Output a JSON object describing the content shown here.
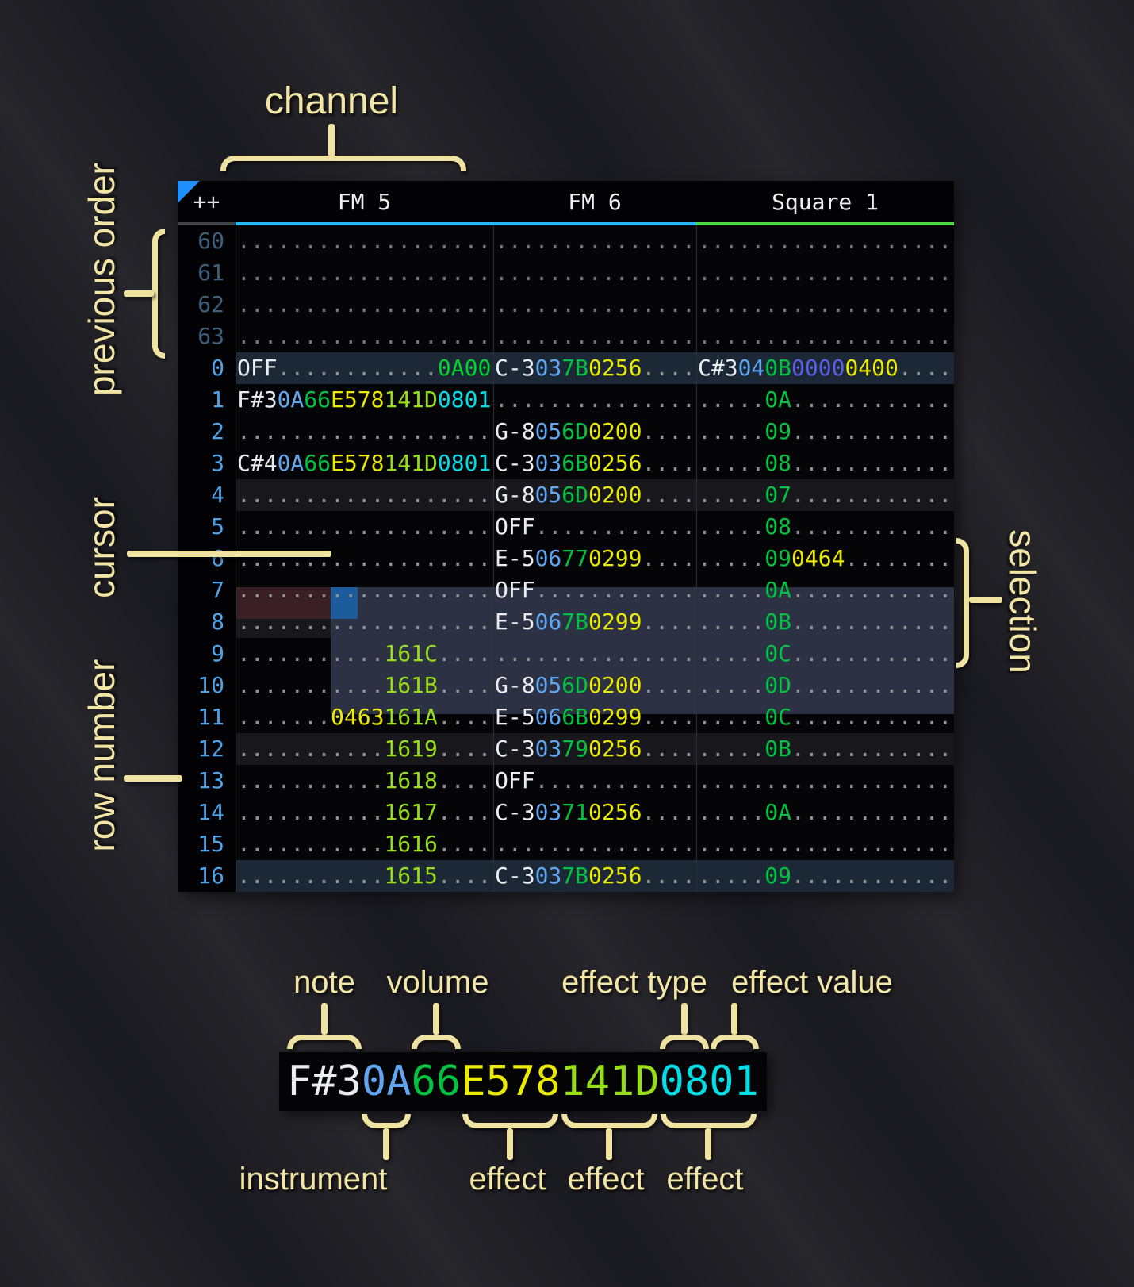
{
  "palette": {
    "note": "#e9edf2",
    "ins": "#61a6f0",
    "vol": "#00c341",
    "fxy": "#ebeb00",
    "fxl": "#97de17",
    "fxc": "#00dfe8",
    "fxp": "#5e5ee6",
    "fxg": "#00d22e",
    "dot": "#8e9297",
    "dim": "#70757a",
    "rownum": "#4ea3e8",
    "rowdim": "#3c5f7c",
    "underline_fm": "#29b8f2",
    "underline_square": "#4ed947",
    "cursor": "#1c5c9c",
    "selection": "#2d3144",
    "cursor_row": "#3a2024",
    "corner_triangle": "#1e8fff",
    "annotation": "#f2e5a6"
  },
  "annotations": {
    "channel": "channel",
    "previous_order": "previous order",
    "cursor": "cursor",
    "row_number": "row number",
    "selection": "selection",
    "note": "note",
    "volume": "volume",
    "effect_type": "effect type",
    "effect_value": "effect value",
    "instrument": "instrument",
    "effect1": "effect",
    "effect2": "effect",
    "effect3": "effect"
  },
  "tracker": {
    "corner_label": "++",
    "channels": [
      {
        "name": "FM 5",
        "underline": "#29b8f2"
      },
      {
        "name": "FM 6",
        "underline": "#29b8f2"
      },
      {
        "name": "Square 1",
        "underline": "#4ed947"
      }
    ],
    "rows": [
      {
        "num": "60",
        "dim": true,
        "bg": "none",
        "cells": [
          [
            [
              "...................",
              "dim"
            ]
          ],
          [
            [
              "...............",
              "dim"
            ]
          ],
          [
            [
              "...................",
              "dim"
            ]
          ]
        ]
      },
      {
        "num": "61",
        "dim": true,
        "bg": "none",
        "cells": [
          [
            [
              "...................",
              "dim"
            ]
          ],
          [
            [
              "...............",
              "dim"
            ]
          ],
          [
            [
              "...................",
              "dim"
            ]
          ]
        ]
      },
      {
        "num": "62",
        "dim": true,
        "bg": "none",
        "cells": [
          [
            [
              "...................",
              "dim"
            ]
          ],
          [
            [
              "...............",
              "dim"
            ]
          ],
          [
            [
              "...................",
              "dim"
            ]
          ]
        ]
      },
      {
        "num": "63",
        "dim": true,
        "bg": "none",
        "cells": [
          [
            [
              "...................",
              "dim"
            ]
          ],
          [
            [
              "...............",
              "dim"
            ]
          ],
          [
            [
              "...................",
              "dim"
            ]
          ]
        ]
      },
      {
        "num": "0",
        "dim": false,
        "bg": "major",
        "cells": [
          [
            [
              "OFF",
              "note"
            ],
            [
              "............",
              "dot"
            ],
            [
              "0A00",
              "fxg"
            ]
          ],
          [
            [
              "C-3",
              "note"
            ],
            [
              "03",
              "ins"
            ],
            [
              "7B",
              "vol"
            ],
            [
              "0256",
              "fxy"
            ],
            [
              "....",
              "dot"
            ]
          ],
          [
            [
              "C#3",
              "note"
            ],
            [
              "04",
              "ins"
            ],
            [
              "0B",
              "vol"
            ],
            [
              "0000",
              "fxp"
            ],
            [
              "0400",
              "fxy"
            ],
            [
              "....",
              "dot"
            ]
          ]
        ]
      },
      {
        "num": "1",
        "dim": false,
        "bg": "none",
        "cells": [
          [
            [
              "F#3",
              "note"
            ],
            [
              "0A",
              "ins"
            ],
            [
              "66",
              "vol"
            ],
            [
              "E578",
              "fxy"
            ],
            [
              "141D",
              "fxl"
            ],
            [
              "0801",
              "fxc"
            ]
          ],
          [
            [
              "...............",
              "dot"
            ]
          ],
          [
            [
              ".....",
              "dot"
            ],
            [
              "0A",
              "vol"
            ],
            [
              "............",
              "dot"
            ]
          ]
        ]
      },
      {
        "num": "2",
        "dim": false,
        "bg": "none",
        "cells": [
          [
            [
              "...................",
              "dot"
            ]
          ],
          [
            [
              "G-8",
              "note"
            ],
            [
              "05",
              "ins"
            ],
            [
              "6D",
              "vol"
            ],
            [
              "0200",
              "fxy"
            ],
            [
              "....",
              "dot"
            ]
          ],
          [
            [
              ".....",
              "dot"
            ],
            [
              "09",
              "vol"
            ],
            [
              "............",
              "dot"
            ]
          ]
        ]
      },
      {
        "num": "3",
        "dim": false,
        "bg": "none",
        "cells": [
          [
            [
              "C#4",
              "note"
            ],
            [
              "0A",
              "ins"
            ],
            [
              "66",
              "vol"
            ],
            [
              "E578",
              "fxy"
            ],
            [
              "141D",
              "fxl"
            ],
            [
              "0801",
              "fxc"
            ]
          ],
          [
            [
              "C-3",
              "note"
            ],
            [
              "03",
              "ins"
            ],
            [
              "6B",
              "vol"
            ],
            [
              "0256",
              "fxy"
            ],
            [
              "....",
              "dot"
            ]
          ],
          [
            [
              ".....",
              "dot"
            ],
            [
              "08",
              "vol"
            ],
            [
              "............",
              "dot"
            ]
          ]
        ]
      },
      {
        "num": "4",
        "dim": false,
        "bg": "minor",
        "cells": [
          [
            [
              "...................",
              "dot"
            ]
          ],
          [
            [
              "G-8",
              "note"
            ],
            [
              "05",
              "ins"
            ],
            [
              "6D",
              "vol"
            ],
            [
              "0200",
              "fxy"
            ],
            [
              "....",
              "dot"
            ]
          ],
          [
            [
              ".....",
              "dot"
            ],
            [
              "07",
              "vol"
            ],
            [
              "............",
              "dot"
            ]
          ]
        ]
      },
      {
        "num": "5",
        "dim": false,
        "bg": "none",
        "cells": [
          [
            [
              "...................",
              "dot"
            ]
          ],
          [
            [
              "OFF",
              "note"
            ],
            [
              "............",
              "dot"
            ]
          ],
          [
            [
              ".....",
              "dot"
            ],
            [
              "08",
              "vol"
            ],
            [
              "............",
              "dot"
            ]
          ]
        ]
      },
      {
        "num": "6",
        "dim": false,
        "bg": "none",
        "cells": [
          [
            [
              "...................",
              "dot"
            ]
          ],
          [
            [
              "E-5",
              "note"
            ],
            [
              "06",
              "ins"
            ],
            [
              "77",
              "vol"
            ],
            [
              "0299",
              "fxy"
            ],
            [
              "....",
              "dot"
            ]
          ],
          [
            [
              ".....",
              "dot"
            ],
            [
              "09",
              "vol"
            ],
            [
              "0464",
              "fxy"
            ],
            [
              "........",
              "dot"
            ]
          ]
        ]
      },
      {
        "num": "7",
        "dim": false,
        "bg": "none",
        "cells": [
          [
            [
              "...................",
              "dot"
            ]
          ],
          [
            [
              "OFF",
              "note"
            ],
            [
              "............",
              "dot"
            ]
          ],
          [
            [
              ".....",
              "dot"
            ],
            [
              "0A",
              "vol"
            ],
            [
              "............",
              "dot"
            ]
          ]
        ]
      },
      {
        "num": "8",
        "dim": false,
        "bg": "minor",
        "cells": [
          [
            [
              "...................",
              "dot"
            ]
          ],
          [
            [
              "E-5",
              "note"
            ],
            [
              "06",
              "ins"
            ],
            [
              "7B",
              "vol"
            ],
            [
              "0299",
              "fxy"
            ],
            [
              "....",
              "dot"
            ]
          ],
          [
            [
              ".....",
              "dot"
            ],
            [
              "0B",
              "vol"
            ],
            [
              "............",
              "dot"
            ]
          ]
        ]
      },
      {
        "num": "9",
        "dim": false,
        "bg": "none",
        "cells": [
          [
            [
              "...........",
              "dot"
            ],
            [
              "161C",
              "fxl"
            ],
            [
              "....",
              "dot"
            ]
          ],
          [
            [
              "...............",
              "dot"
            ]
          ],
          [
            [
              ".....",
              "dot"
            ],
            [
              "0C",
              "vol"
            ],
            [
              "............",
              "dot"
            ]
          ]
        ]
      },
      {
        "num": "10",
        "dim": false,
        "bg": "none",
        "cells": [
          [
            [
              "...........",
              "dot"
            ],
            [
              "161B",
              "fxl"
            ],
            [
              "....",
              "dot"
            ]
          ],
          [
            [
              "G-8",
              "note"
            ],
            [
              "05",
              "ins"
            ],
            [
              "6D",
              "vol"
            ],
            [
              "0200",
              "fxy"
            ],
            [
              "....",
              "dot"
            ]
          ],
          [
            [
              ".....",
              "dot"
            ],
            [
              "0D",
              "vol"
            ],
            [
              "............",
              "dot"
            ]
          ]
        ]
      },
      {
        "num": "11",
        "dim": false,
        "bg": "none",
        "cells": [
          [
            [
              ".......",
              "dot"
            ],
            [
              "0463",
              "fxy"
            ],
            [
              "161A",
              "fxl"
            ],
            [
              "....",
              "dot"
            ]
          ],
          [
            [
              "E-5",
              "note"
            ],
            [
              "06",
              "ins"
            ],
            [
              "6B",
              "vol"
            ],
            [
              "0299",
              "fxy"
            ],
            [
              "....",
              "dot"
            ]
          ],
          [
            [
              ".....",
              "dot"
            ],
            [
              "0C",
              "vol"
            ],
            [
              "............",
              "dot"
            ]
          ]
        ]
      },
      {
        "num": "12",
        "dim": false,
        "bg": "minor",
        "cells": [
          [
            [
              "...........",
              "dot"
            ],
            [
              "1619",
              "fxl"
            ],
            [
              "....",
              "dot"
            ]
          ],
          [
            [
              "C-3",
              "note"
            ],
            [
              "03",
              "ins"
            ],
            [
              "79",
              "vol"
            ],
            [
              "0256",
              "fxy"
            ],
            [
              "....",
              "dot"
            ]
          ],
          [
            [
              ".....",
              "dot"
            ],
            [
              "0B",
              "vol"
            ],
            [
              "............",
              "dot"
            ]
          ]
        ]
      },
      {
        "num": "13",
        "dim": false,
        "bg": "none",
        "cells": [
          [
            [
              "...........",
              "dot"
            ],
            [
              "1618",
              "fxl"
            ],
            [
              "....",
              "dot"
            ]
          ],
          [
            [
              "OFF",
              "note"
            ],
            [
              "............",
              "dot"
            ]
          ],
          [
            [
              "...................",
              "dot"
            ]
          ]
        ]
      },
      {
        "num": "14",
        "dim": false,
        "bg": "none",
        "cells": [
          [
            [
              "...........",
              "dot"
            ],
            [
              "1617",
              "fxl"
            ],
            [
              "....",
              "dot"
            ]
          ],
          [
            [
              "C-3",
              "note"
            ],
            [
              "03",
              "ins"
            ],
            [
              "71",
              "vol"
            ],
            [
              "0256",
              "fxy"
            ],
            [
              "....",
              "dot"
            ]
          ],
          [
            [
              ".....",
              "dot"
            ],
            [
              "0A",
              "vol"
            ],
            [
              "............",
              "dot"
            ]
          ]
        ]
      },
      {
        "num": "15",
        "dim": false,
        "bg": "none",
        "cells": [
          [
            [
              "...........",
              "dot"
            ],
            [
              "1616",
              "fxl"
            ],
            [
              "....",
              "dot"
            ]
          ],
          [
            [
              "...............",
              "dot"
            ]
          ],
          [
            [
              "...................",
              "dot"
            ]
          ]
        ]
      },
      {
        "num": "16",
        "dim": false,
        "bg": "major",
        "cells": [
          [
            [
              "...........",
              "dot"
            ],
            [
              "1615",
              "fxl"
            ],
            [
              "....",
              "dot"
            ]
          ],
          [
            [
              "C-3",
              "note"
            ],
            [
              "03",
              "ins"
            ],
            [
              "7B",
              "vol"
            ],
            [
              "0256",
              "fxy"
            ],
            [
              "....",
              "dot"
            ]
          ],
          [
            [
              ".....",
              "dot"
            ],
            [
              "09",
              "vol"
            ],
            [
              "............",
              "dot"
            ]
          ]
        ]
      }
    ]
  },
  "sample": {
    "segments": [
      [
        "F#3",
        "note"
      ],
      [
        "0A",
        "ins"
      ],
      [
        "66",
        "vol"
      ],
      [
        "E578",
        "fxy"
      ],
      [
        "141D",
        "fxl"
      ],
      [
        "0801",
        "fxc"
      ]
    ]
  }
}
